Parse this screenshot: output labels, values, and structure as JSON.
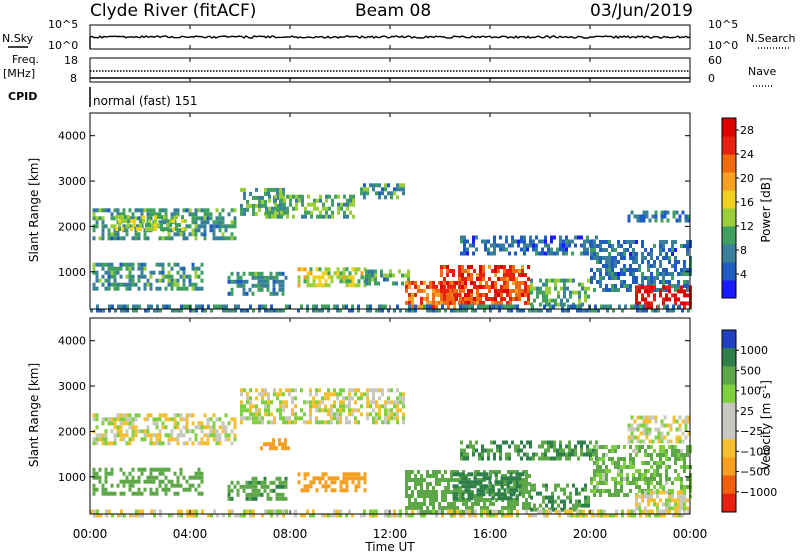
{
  "header": {
    "station": "Clyde River (fitACF)",
    "beam": "Beam 08",
    "date": "03/Jun/2019"
  },
  "aux": {
    "nsky_label": "N.Sky",
    "nsearch_label": "N.Search",
    "freq_label": "Freq.",
    "freq_unit": "[MHz]",
    "nave_label": "Nave",
    "cpid_label": "CPID",
    "cpid_value": "normal (fast) 151",
    "noise_ticks_left": [
      "10^5",
      "10^0"
    ],
    "noise_ticks_right": [
      "10^5",
      "10^0"
    ],
    "freq_ticks_left": [
      "18",
      "8"
    ],
    "nave_ticks_right": [
      "60",
      "0"
    ]
  },
  "xaxis": {
    "label": "Time UT",
    "ticks": [
      "00:00",
      "04:00",
      "08:00",
      "12:00",
      "16:00",
      "20:00",
      "00:00"
    ]
  },
  "colors": {
    "power_scale": [
      "#1a1aff",
      "#1f5cbf",
      "#3a7f9a",
      "#3f9f5f",
      "#9acd3a",
      "#f0d020",
      "#f5a020",
      "#f06a10",
      "#e82010",
      "#dd0000"
    ],
    "velocity_scale": [
      "#2040c0",
      "#2e7f4a",
      "#5fa84a",
      "#7ed040",
      "#c8c8c0",
      "#c8c8c0",
      "#f5c030",
      "#f5a020",
      "#f06010",
      "#e82010"
    ]
  },
  "chart_data": [
    {
      "type": "heatmap",
      "name": "power",
      "ylabel": "Slant Range [km]",
      "yticks": [
        "1000",
        "2000",
        "3000",
        "4000"
      ],
      "ylim": [
        180,
        4500
      ],
      "xlim_hours": [
        0,
        24
      ],
      "colorbar": {
        "label": "Power [dB]",
        "ticks": [
          "4",
          "8",
          "12",
          "16",
          "20",
          "24",
          "28"
        ],
        "range": [
          0,
          30
        ]
      },
      "regions": [
        {
          "t0": 0.1,
          "t1": 5.8,
          "r0": 1700,
          "r1": 2400,
          "level": 10
        },
        {
          "t0": 1.0,
          "t1": 3.8,
          "r0": 1950,
          "r1": 2250,
          "level": 14
        },
        {
          "t0": 6.0,
          "t1": 7.8,
          "r0": 2300,
          "r1": 2850,
          "level": 11
        },
        {
          "t0": 7.0,
          "t1": 10.5,
          "r0": 2200,
          "r1": 2700,
          "level": 12
        },
        {
          "t0": 10.8,
          "t1": 12.5,
          "r0": 2650,
          "r1": 2950,
          "level": 10
        },
        {
          "t0": 0.1,
          "t1": 4.5,
          "r0": 650,
          "r1": 1200,
          "level": 10
        },
        {
          "t0": 5.5,
          "t1": 7.8,
          "r0": 550,
          "r1": 1000,
          "level": 9
        },
        {
          "t0": 8.3,
          "t1": 11.0,
          "r0": 680,
          "r1": 1100,
          "level": 16
        },
        {
          "t0": 11.0,
          "t1": 12.7,
          "r0": 700,
          "r1": 1050,
          "level": 10
        },
        {
          "t0": 12.6,
          "t1": 15.0,
          "r0": 200,
          "r1": 800,
          "level": 24
        },
        {
          "t0": 14.0,
          "t1": 17.6,
          "r0": 300,
          "r1": 1150,
          "level": 26
        },
        {
          "t0": 17.6,
          "t1": 20.0,
          "r0": 300,
          "r1": 850,
          "level": 12
        },
        {
          "t0": 14.8,
          "t1": 20.3,
          "r0": 1400,
          "r1": 1800,
          "level": 6
        },
        {
          "t0": 20.0,
          "t1": 24.0,
          "r0": 600,
          "r1": 1700,
          "level": 7
        },
        {
          "t0": 21.8,
          "t1": 24.0,
          "r0": 180,
          "r1": 700,
          "level": 30
        },
        {
          "t0": 21.5,
          "t1": 24.0,
          "r0": 2150,
          "r1": 2350,
          "level": 8
        },
        {
          "t0": 0.0,
          "t1": 24.0,
          "r0": 180,
          "r1": 280,
          "level": 8
        }
      ]
    },
    {
      "type": "heatmap",
      "name": "velocity",
      "ylabel": "Slant Range [km]",
      "yticks": [
        "1000",
        "2000",
        "3000",
        "4000"
      ],
      "ylim": [
        180,
        4500
      ],
      "xlim_hours": [
        0,
        24
      ],
      "colorbar": {
        "label": "Velocity [m s^-1]",
        "ticks": [
          "1000",
          "500",
          "100",
          "25",
          "−25",
          "−100",
          "−500",
          "−1000"
        ],
        "range": [
          -1000,
          1000
        ]
      },
      "regions": [
        {
          "t0": 0.1,
          "t1": 5.8,
          "r0": 1700,
          "r1": 2400,
          "level": 0
        },
        {
          "t0": 6.0,
          "t1": 12.5,
          "r0": 2200,
          "r1": 2950,
          "level": 0
        },
        {
          "t0": 0.1,
          "t1": 4.5,
          "r0": 650,
          "r1": 1200,
          "level": 200
        },
        {
          "t0": 5.5,
          "t1": 7.8,
          "r0": 550,
          "r1": 1000,
          "level": 250
        },
        {
          "t0": 6.8,
          "t1": 8.0,
          "r0": 1600,
          "r1": 1850,
          "level": -300
        },
        {
          "t0": 8.3,
          "t1": 11.0,
          "r0": 680,
          "r1": 1100,
          "level": -200
        },
        {
          "t0": 12.6,
          "t1": 17.6,
          "r0": 200,
          "r1": 1150,
          "level": 200
        },
        {
          "t0": 14.5,
          "t1": 17.3,
          "r0": 500,
          "r1": 1100,
          "level": 700
        },
        {
          "t0": 17.6,
          "t1": 20.0,
          "r0": 300,
          "r1": 850,
          "level": 300
        },
        {
          "t0": 14.8,
          "t1": 20.3,
          "r0": 1400,
          "r1": 1800,
          "level": 300
        },
        {
          "t0": 20.0,
          "t1": 24.0,
          "r0": 600,
          "r1": 1700,
          "level": 100
        },
        {
          "t0": 21.8,
          "t1": 24.0,
          "r0": 180,
          "r1": 700,
          "level": 0
        },
        {
          "t0": 21.5,
          "t1": 24.0,
          "r0": 1800,
          "r1": 2350,
          "level": 0
        },
        {
          "t0": 0.0,
          "t1": 24.0,
          "r0": 180,
          "r1": 280,
          "level": 0
        }
      ]
    }
  ]
}
